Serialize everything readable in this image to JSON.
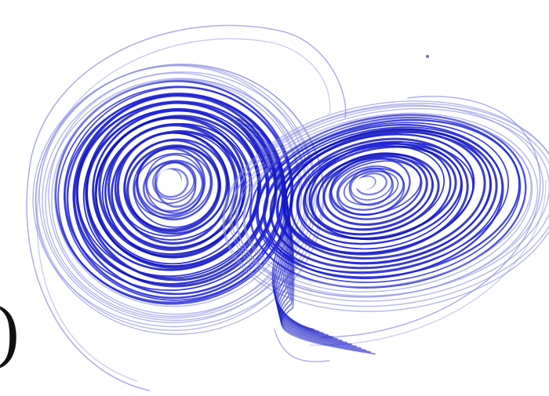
{
  "figure": {
    "panel_mark": ")",
    "palette": {
      "background": "#ffffff",
      "trajectory": "#1f24d6",
      "trajectory_dark": "#0b10b4",
      "trajectory_pale": "#8d90e6",
      "halo": "#c6c8f2"
    }
  }
}
